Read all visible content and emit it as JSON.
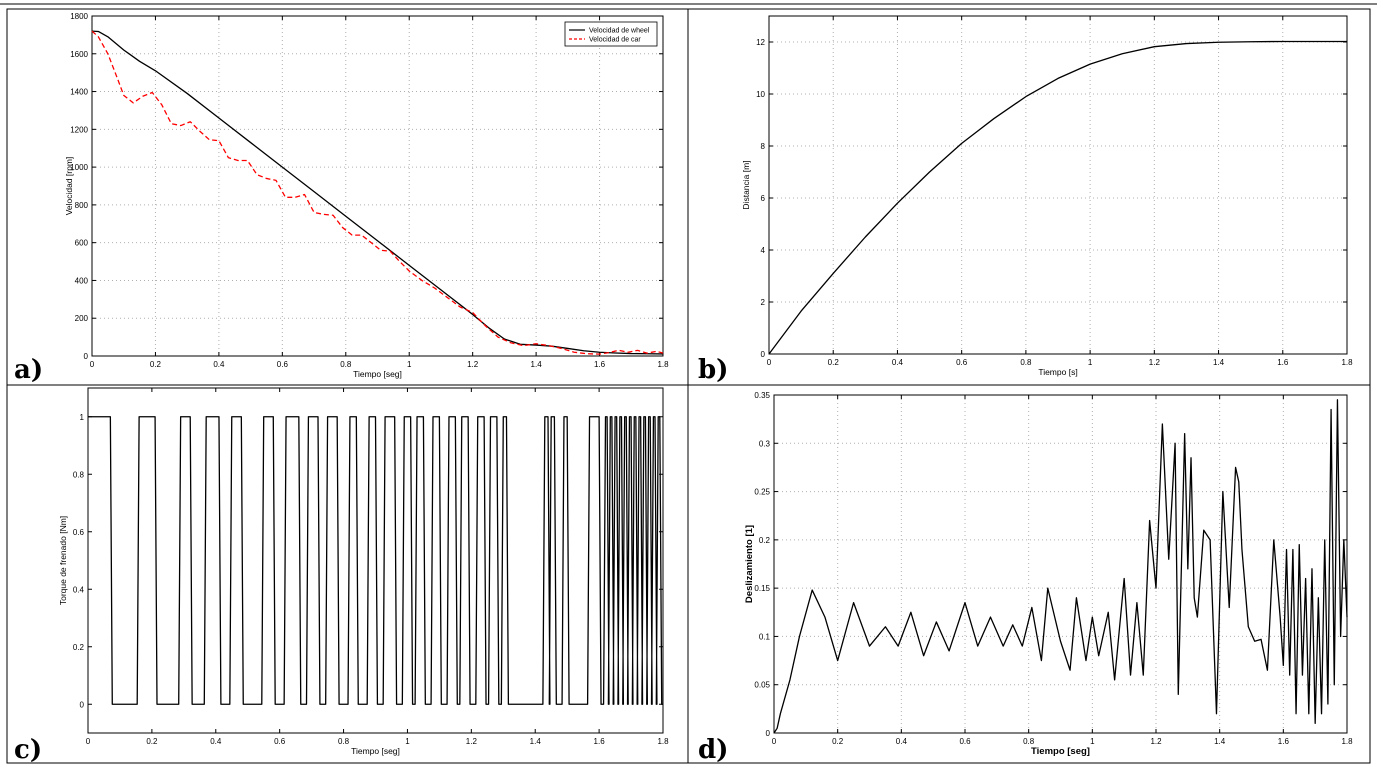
{
  "chart_data": [
    {
      "panel": "a)",
      "type": "line",
      "xlabel": "Tiempo [seg]",
      "ylabel": "Velocidad [rpm]",
      "xlim": [
        0,
        1.8
      ],
      "ylim": [
        0,
        1800
      ],
      "xticks": [
        0,
        0.2,
        0.4,
        0.6,
        0.8,
        1,
        1.2,
        1.4,
        1.6,
        1.8
      ],
      "yticks": [
        0,
        200,
        400,
        600,
        800,
        1000,
        1200,
        1400,
        1600,
        1800
      ],
      "grid": true,
      "legend": "top-right",
      "series": [
        {
          "name": "Velocidad de wheel",
          "color": "#000000",
          "style": "solid",
          "x": [
            0,
            0.02,
            0.05,
            0.1,
            0.15,
            0.2,
            0.3,
            0.4,
            0.5,
            0.6,
            0.7,
            0.8,
            0.9,
            1.0,
            1.1,
            1.2,
            1.25,
            1.3,
            1.35,
            1.4,
            1.45,
            1.5,
            1.55,
            1.6,
            1.65,
            1.7,
            1.75,
            1.8
          ],
          "y": [
            1720,
            1718,
            1690,
            1620,
            1560,
            1510,
            1390,
            1260,
            1130,
            1000,
            870,
            740,
            610,
            480,
            350,
            220,
            150,
            90,
            62,
            58,
            52,
            40,
            28,
            20,
            16,
            13,
            12,
            11
          ]
        },
        {
          "name": "Velocidad de car",
          "color": "#ff0000",
          "style": "dashed",
          "x": [
            0,
            0.02,
            0.05,
            0.08,
            0.1,
            0.13,
            0.16,
            0.19,
            0.22,
            0.25,
            0.28,
            0.31,
            0.34,
            0.37,
            0.4,
            0.43,
            0.46,
            0.49,
            0.52,
            0.55,
            0.58,
            0.61,
            0.64,
            0.67,
            0.7,
            0.73,
            0.76,
            0.79,
            0.82,
            0.85,
            0.88,
            0.91,
            0.94,
            0.97,
            1.0,
            1.04,
            1.08,
            1.12,
            1.16,
            1.2,
            1.24,
            1.28,
            1.32,
            1.36,
            1.4,
            1.44,
            1.48,
            1.52,
            1.56,
            1.6,
            1.63,
            1.66,
            1.69,
            1.72,
            1.75,
            1.78,
            1.8
          ],
          "y": [
            1720,
            1690,
            1600,
            1470,
            1380,
            1340,
            1375,
            1395,
            1330,
            1230,
            1220,
            1240,
            1190,
            1145,
            1140,
            1050,
            1035,
            1035,
            960,
            940,
            930,
            840,
            840,
            855,
            760,
            750,
            745,
            680,
            640,
            640,
            600,
            560,
            555,
            500,
            450,
            400,
            360,
            310,
            260,
            230,
            160,
            100,
            70,
            55,
            65,
            55,
            40,
            20,
            12,
            10,
            18,
            30,
            20,
            30,
            15,
            25,
            15
          ]
        }
      ]
    },
    {
      "panel": "b)",
      "type": "line",
      "xlabel": "Tiempo [s]",
      "ylabel": "Distancia [m]",
      "xlim": [
        0,
        1.8
      ],
      "ylim": [
        0,
        13
      ],
      "xticks": [
        0,
        0.2,
        0.4,
        0.6,
        0.8,
        1,
        1.2,
        1.4,
        1.6,
        1.8
      ],
      "yticks": [
        0,
        2,
        4,
        6,
        8,
        10,
        12
      ],
      "grid": true,
      "series": [
        {
          "color": "#000000",
          "style": "solid",
          "x": [
            0,
            0.1,
            0.2,
            0.3,
            0.4,
            0.5,
            0.6,
            0.7,
            0.8,
            0.9,
            1.0,
            1.1,
            1.2,
            1.3,
            1.4,
            1.5,
            1.6,
            1.7,
            1.8
          ],
          "y": [
            0,
            1.65,
            3.1,
            4.5,
            5.8,
            7.0,
            8.1,
            9.05,
            9.9,
            10.6,
            11.15,
            11.55,
            11.82,
            11.94,
            11.99,
            12.01,
            12.02,
            12.02,
            12.02
          ]
        }
      ]
    },
    {
      "panel": "c)",
      "type": "line",
      "xlabel": "Tiempo [seg]",
      "ylabel": "Torque de frenado [Nm]",
      "xlim": [
        0,
        1.8
      ],
      "ylim": [
        -0.1,
        1.1
      ],
      "xticks": [
        0,
        0.2,
        0.4,
        0.6,
        0.8,
        1,
        1.2,
        1.4,
        1.6,
        1.8
      ],
      "yticks": [
        0,
        0.2,
        0.4,
        0.6,
        0.8,
        1
      ],
      "grid": false,
      "series": [
        {
          "color": "#000000",
          "style": "solid",
          "on_intervals": [
            [
              0,
              0.07
            ],
            [
              0.16,
              0.21
            ],
            [
              0.29,
              0.32
            ],
            [
              0.37,
              0.41
            ],
            [
              0.45,
              0.48
            ],
            [
              0.55,
              0.58
            ],
            [
              0.62,
              0.66
            ],
            [
              0.69,
              0.72
            ],
            [
              0.75,
              0.78
            ],
            [
              0.82,
              0.84
            ],
            [
              0.88,
              0.9
            ],
            [
              0.93,
              0.96
            ],
            [
              0.99,
              1.01
            ],
            [
              1.03,
              1.05
            ],
            [
              1.08,
              1.1
            ],
            [
              1.13,
              1.15
            ],
            [
              1.17,
              1.19
            ],
            [
              1.22,
              1.24
            ],
            [
              1.26,
              1.28
            ],
            [
              1.3,
              1.31
            ],
            [
              1.43,
              1.44
            ],
            [
              1.45,
              1.46
            ],
            [
              1.49,
              1.5
            ],
            [
              1.57,
              1.6
            ],
            [
              1.62,
              1.625
            ],
            [
              1.635,
              1.64
            ],
            [
              1.65,
              1.655
            ],
            [
              1.665,
              1.67
            ],
            [
              1.68,
              1.685
            ],
            [
              1.695,
              1.7
            ],
            [
              1.71,
              1.715
            ],
            [
              1.725,
              1.73
            ],
            [
              1.74,
              1.745
            ],
            [
              1.755,
              1.76
            ],
            [
              1.77,
              1.775
            ],
            [
              1.785,
              1.79
            ]
          ],
          "ramp": 0.006,
          "on_value": 1,
          "off_value": 0
        }
      ]
    },
    {
      "panel": "d)",
      "type": "line",
      "xlabel": "Tiempo [seg]",
      "ylabel": "Deslizamiento [1]",
      "xlim": [
        0,
        1.8
      ],
      "ylim": [
        0,
        0.35
      ],
      "xticks": [
        0,
        0.2,
        0.4,
        0.6,
        0.8,
        1,
        1.2,
        1.4,
        1.6,
        1.8
      ],
      "yticks": [
        0,
        0.05,
        0.1,
        0.15,
        0.2,
        0.25,
        0.3,
        0.35
      ],
      "grid": true,
      "series": [
        {
          "color": "#000000",
          "style": "solid",
          "x": [
            0,
            0.01,
            0.02,
            0.05,
            0.08,
            0.12,
            0.16,
            0.2,
            0.25,
            0.3,
            0.35,
            0.39,
            0.43,
            0.47,
            0.51,
            0.55,
            0.6,
            0.64,
            0.68,
            0.72,
            0.75,
            0.78,
            0.81,
            0.84,
            0.86,
            0.9,
            0.93,
            0.95,
            0.98,
            1.0,
            1.02,
            1.05,
            1.07,
            1.1,
            1.12,
            1.14,
            1.16,
            1.18,
            1.2,
            1.22,
            1.24,
            1.26,
            1.27,
            1.29,
            1.3,
            1.31,
            1.32,
            1.33,
            1.35,
            1.37,
            1.39,
            1.41,
            1.43,
            1.45,
            1.46,
            1.47,
            1.49,
            1.51,
            1.53,
            1.55,
            1.57,
            1.59,
            1.6,
            1.61,
            1.62,
            1.63,
            1.64,
            1.65,
            1.66,
            1.67,
            1.68,
            1.69,
            1.7,
            1.71,
            1.72,
            1.73,
            1.74,
            1.75,
            1.76,
            1.77,
            1.78,
            1.79,
            1.8
          ],
          "y": [
            0.0,
            0.005,
            0.02,
            0.055,
            0.1,
            0.148,
            0.12,
            0.075,
            0.135,
            0.09,
            0.11,
            0.09,
            0.125,
            0.08,
            0.115,
            0.085,
            0.135,
            0.09,
            0.12,
            0.09,
            0.112,
            0.09,
            0.13,
            0.075,
            0.15,
            0.095,
            0.065,
            0.14,
            0.075,
            0.12,
            0.08,
            0.125,
            0.055,
            0.16,
            0.06,
            0.135,
            0.06,
            0.22,
            0.15,
            0.32,
            0.18,
            0.3,
            0.04,
            0.31,
            0.17,
            0.285,
            0.14,
            0.12,
            0.21,
            0.2,
            0.02,
            0.25,
            0.13,
            0.275,
            0.26,
            0.19,
            0.11,
            0.095,
            0.097,
            0.065,
            0.2,
            0.12,
            0.07,
            0.19,
            0.06,
            0.19,
            0.02,
            0.195,
            0.06,
            0.16,
            0.02,
            0.17,
            0.01,
            0.14,
            0.02,
            0.2,
            0.03,
            0.335,
            0.05,
            0.345,
            0.1,
            0.2,
            0.12
          ]
        }
      ]
    }
  ]
}
